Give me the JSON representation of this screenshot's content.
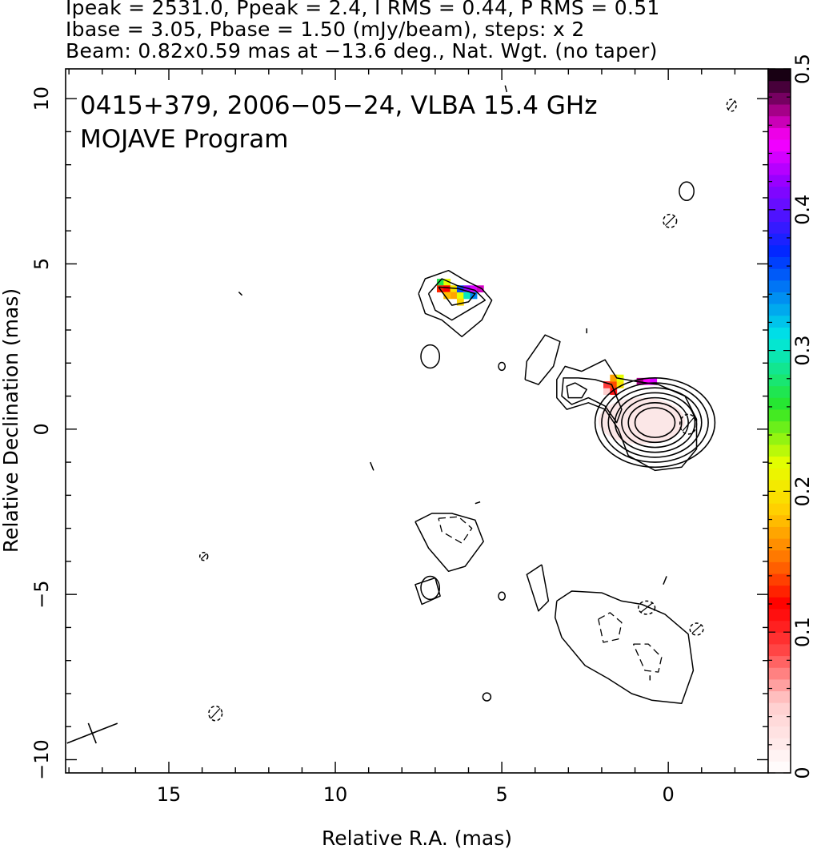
{
  "header": {
    "line1": "Ipeak = 2531.0, Ppeak = 2.4, I RMS = 0.44, P RMS = 0.51",
    "line2": "Ibase = 3.05, Pbase = 1.50 (mJy/beam), steps: x 2",
    "line3": "Beam: 0.82x0.59 mas at −13.6 deg., Nat. Wgt. (no taper)"
  },
  "plot_title": {
    "line1": "0415+379, 2006−05−24, VLBA 15.4 GHz",
    "line2": "MOJAVE Program"
  },
  "chart_data": {
    "type": "heatmap",
    "subtype": "radio contour map with fractional polarization color overlay",
    "xlabel": "Relative R.A. (mas)",
    "ylabel": "Relative Declination (mas)",
    "xlim": [
      18.1,
      -3.0
    ],
    "ylim": [
      -10.4,
      10.9
    ],
    "x_inverted": true,
    "x_ticks": [
      {
        "value": 15,
        "label": "15"
      },
      {
        "value": 10,
        "label": "10"
      },
      {
        "value": 5,
        "label": "5"
      },
      {
        "value": 0,
        "label": "0"
      }
    ],
    "y_ticks": [
      {
        "value": 10,
        "label": "10"
      },
      {
        "value": 5,
        "label": "5"
      },
      {
        "value": 0,
        "label": "0"
      },
      {
        "value": -5,
        "label": "−5"
      },
      {
        "value": -10,
        "label": "−10"
      }
    ],
    "colorbar": {
      "min": 0,
      "max": 0.5,
      "ticks": [
        {
          "value": 0,
          "label": "0"
        },
        {
          "value": 0.1,
          "label": "0.1"
        },
        {
          "value": 0.2,
          "label": "0.2"
        },
        {
          "value": 0.3,
          "label": "0.3"
        },
        {
          "value": 0.4,
          "label": "0.4"
        },
        {
          "value": 0.5,
          "label": "0.5"
        }
      ]
    },
    "beam": {
      "major_mas": 0.82,
      "minor_mas": 0.59,
      "pa_deg": -13.6,
      "x": 17.3,
      "y": -9.2
    },
    "core_center": {
      "x": 0.4,
      "y": 0.2
    },
    "core_contours": [
      {
        "rx": 1.8,
        "ry": 1.35
      },
      {
        "rx": 1.6,
        "ry": 1.2
      },
      {
        "rx": 1.4,
        "ry": 1.05
      },
      {
        "rx": 1.2,
        "ry": 0.9
      },
      {
        "rx": 1.0,
        "ry": 0.75
      },
      {
        "rx": 0.8,
        "ry": 0.6
      },
      {
        "rx": 0.6,
        "ry": 0.45
      }
    ],
    "contour_polylines": [
      {
        "name": "inner-jet-outer",
        "dashed": false,
        "points": [
          [
            2.6,
            1.75
          ],
          [
            3.1,
            1.9
          ],
          [
            3.35,
            1.5
          ],
          [
            3.35,
            0.95
          ],
          [
            3.05,
            0.6
          ],
          [
            2.4,
            0.8
          ],
          [
            1.9,
            0.6
          ],
          [
            1.5,
            0.0
          ],
          [
            1.2,
            -0.8
          ],
          [
            0.4,
            -1.25
          ],
          [
            -0.4,
            -1.15
          ],
          [
            -0.85,
            -0.6
          ],
          [
            -0.85,
            0.3
          ],
          [
            -0.5,
            1.0
          ],
          [
            0.3,
            1.35
          ],
          [
            1.0,
            1.45
          ],
          [
            1.55,
            1.55
          ],
          [
            1.9,
            2.1
          ],
          [
            2.6,
            1.75
          ]
        ]
      },
      {
        "name": "inner-jet-mid",
        "dashed": false,
        "points": [
          [
            2.7,
            1.55
          ],
          [
            3.15,
            1.55
          ],
          [
            3.2,
            1.0
          ],
          [
            2.9,
            0.75
          ],
          [
            2.4,
            0.95
          ],
          [
            1.9,
            0.7
          ],
          [
            1.55,
            0.2
          ],
          [
            1.4,
            0.6
          ],
          [
            1.7,
            1.35
          ],
          [
            2.2,
            1.5
          ],
          [
            2.7,
            1.55
          ]
        ]
      },
      {
        "name": "inner-jet-inner",
        "dashed": false,
        "points": [
          [
            2.8,
            1.4
          ],
          [
            3.05,
            1.3
          ],
          [
            3.0,
            0.95
          ],
          [
            2.6,
            0.95
          ],
          [
            2.45,
            1.2
          ],
          [
            2.8,
            1.4
          ]
        ]
      },
      {
        "name": "northeast-knot-outer",
        "dashed": false,
        "points": [
          [
            7.5,
            4.1
          ],
          [
            7.3,
            4.55
          ],
          [
            6.6,
            4.8
          ],
          [
            6.1,
            4.5
          ],
          [
            5.6,
            4.25
          ],
          [
            5.3,
            3.9
          ],
          [
            5.6,
            3.3
          ],
          [
            6.2,
            2.8
          ],
          [
            6.8,
            3.3
          ],
          [
            7.3,
            3.5
          ],
          [
            7.5,
            4.1
          ]
        ]
      },
      {
        "name": "northeast-knot-mid",
        "dashed": false,
        "points": [
          [
            7.2,
            4.1
          ],
          [
            6.8,
            4.55
          ],
          [
            6.35,
            4.35
          ],
          [
            5.8,
            4.2
          ],
          [
            5.5,
            3.9
          ],
          [
            6.0,
            3.6
          ],
          [
            6.5,
            3.3
          ],
          [
            7.0,
            3.6
          ],
          [
            7.2,
            4.1
          ]
        ]
      },
      {
        "name": "northeast-knot-inner",
        "dashed": false,
        "points": [
          [
            6.9,
            4.3
          ],
          [
            6.3,
            4.25
          ],
          [
            5.8,
            4.1
          ],
          [
            6.0,
            3.85
          ],
          [
            6.5,
            3.75
          ],
          [
            6.9,
            4.3
          ]
        ]
      },
      {
        "name": "middle-arc",
        "dashed": false,
        "points": [
          [
            4.3,
            1.5
          ],
          [
            4.25,
            2.05
          ],
          [
            3.7,
            2.85
          ],
          [
            3.25,
            2.65
          ],
          [
            3.45,
            1.9
          ],
          [
            3.9,
            1.35
          ],
          [
            4.3,
            1.5
          ]
        ]
      },
      {
        "name": "south-knot-outer",
        "dashed": false,
        "points": [
          [
            7.6,
            -2.8
          ],
          [
            7.1,
            -2.55
          ],
          [
            6.5,
            -2.55
          ],
          [
            5.8,
            -2.75
          ],
          [
            5.55,
            -3.4
          ],
          [
            6.1,
            -4.15
          ],
          [
            6.6,
            -4.3
          ],
          [
            7.2,
            -3.6
          ],
          [
            7.6,
            -2.8
          ]
        ]
      },
      {
        "name": "south-knot-neg",
        "dashed": true,
        "points": [
          [
            6.9,
            -2.7
          ],
          [
            6.3,
            -2.65
          ],
          [
            5.9,
            -3.0
          ],
          [
            6.2,
            -3.45
          ],
          [
            6.8,
            -3.1
          ],
          [
            6.9,
            -2.7
          ]
        ]
      },
      {
        "name": "southwest-blob-outer",
        "dashed": false,
        "points": [
          [
            3.35,
            -5.2
          ],
          [
            2.9,
            -4.9
          ],
          [
            2.0,
            -4.95
          ],
          [
            1.4,
            -5.2
          ],
          [
            0.8,
            -5.3
          ],
          [
            0.1,
            -5.6
          ],
          [
            -0.6,
            -6.2
          ],
          [
            -0.75,
            -7.3
          ],
          [
            -0.4,
            -8.3
          ],
          [
            0.5,
            -8.2
          ],
          [
            1.1,
            -8.0
          ],
          [
            1.8,
            -7.55
          ],
          [
            2.5,
            -7.15
          ],
          [
            3.2,
            -6.3
          ],
          [
            3.4,
            -5.7
          ],
          [
            3.35,
            -5.2
          ]
        ]
      },
      {
        "name": "southwest-neg-1",
        "dashed": true,
        "points": [
          [
            2.1,
            -5.75
          ],
          [
            1.75,
            -5.55
          ],
          [
            1.4,
            -5.85
          ],
          [
            1.5,
            -6.35
          ],
          [
            1.95,
            -6.45
          ],
          [
            2.1,
            -5.75
          ]
        ]
      },
      {
        "name": "southwest-neg-2",
        "dashed": true,
        "points": [
          [
            1.05,
            -6.5
          ],
          [
            0.6,
            -6.5
          ],
          [
            0.2,
            -6.9
          ],
          [
            0.3,
            -7.35
          ],
          [
            0.7,
            -7.3
          ],
          [
            1.05,
            -6.5
          ]
        ]
      },
      {
        "name": "ray-southeast",
        "dashed": false,
        "points": [
          [
            3.8,
            -4.1
          ],
          [
            3.6,
            -5.2
          ],
          [
            3.9,
            -5.5
          ],
          [
            4.25,
            -4.4
          ],
          [
            3.8,
            -4.1
          ]
        ]
      },
      {
        "name": "ray-far",
        "dashed": false,
        "points": [
          [
            7.0,
            -4.5
          ],
          [
            6.85,
            -5.05
          ],
          [
            7.4,
            -5.3
          ],
          [
            7.6,
            -4.7
          ],
          [
            7.0,
            -4.5
          ]
        ]
      }
    ],
    "contour_ellipses": [
      {
        "x": 7.15,
        "y": 2.2,
        "rx": 0.28,
        "ry": 0.35,
        "dashed": false
      },
      {
        "x": 5.0,
        "y": 1.9,
        "rx": 0.1,
        "ry": 0.12,
        "dashed": false
      },
      {
        "x": 7.15,
        "y": -4.8,
        "rx": 0.28,
        "ry": 0.35,
        "dashed": false
      },
      {
        "x": 5.0,
        "y": -5.05,
        "rx": 0.1,
        "ry": 0.12,
        "dashed": false
      },
      {
        "x": 5.45,
        "y": -8.1,
        "rx": 0.12,
        "ry": 0.12,
        "dashed": false
      },
      {
        "x": 13.6,
        "y": -8.6,
        "rx": 0.2,
        "ry": 0.22,
        "dashed": true
      },
      {
        "x": 13.95,
        "y": -3.85,
        "rx": 0.12,
        "ry": 0.12,
        "dashed": true
      },
      {
        "x": -0.55,
        "y": 7.2,
        "rx": 0.22,
        "ry": 0.28,
        "dashed": false
      },
      {
        "x": -0.05,
        "y": 6.3,
        "rx": 0.2,
        "ry": 0.2,
        "dashed": true
      },
      {
        "x": -1.9,
        "y": 9.8,
        "rx": 0.14,
        "ry": 0.18,
        "dashed": true
      },
      {
        "x": -0.6,
        "y": 0.15,
        "rx": 0.25,
        "ry": 0.3,
        "dashed": true
      },
      {
        "x": 0.65,
        "y": -5.4,
        "rx": 0.25,
        "ry": 0.2,
        "dashed": true
      },
      {
        "x": -0.85,
        "y": -6.05,
        "rx": 0.2,
        "ry": 0.18,
        "dashed": true
      }
    ],
    "contour_ticks": [
      {
        "x1": 12.9,
        "y1": 4.15,
        "x2": 12.8,
        "y2": 4.05
      },
      {
        "x1": 8.95,
        "y1": -1.0,
        "x2": 8.85,
        "y2": -1.25
      },
      {
        "x1": 2.45,
        "y1": 3.05,
        "x2": 2.45,
        "y2": 2.9
      },
      {
        "x1": 0.05,
        "y1": -4.45,
        "x2": 0.15,
        "y2": -4.7
      },
      {
        "x1": 0.55,
        "y1": -7.45,
        "x2": 0.55,
        "y2": -7.6
      },
      {
        "x1": 4.9,
        "y1": 10.4,
        "x2": 4.85,
        "y2": 10.2
      },
      {
        "x1": 2.45,
        "y1": 10.0,
        "x2": 2.4,
        "y2": 9.85
      },
      {
        "x1": 5.8,
        "y1": -2.25,
        "x2": 5.65,
        "y2": -2.2
      }
    ],
    "polarization_pixels": [
      {
        "x": 6.85,
        "y": 4.45,
        "p": 0.27
      },
      {
        "x": 6.65,
        "y": 4.45,
        "p": 0.22
      },
      {
        "x": 6.85,
        "y": 4.25,
        "p": 0.13
      },
      {
        "x": 6.65,
        "y": 4.25,
        "p": 0.12
      },
      {
        "x": 6.45,
        "y": 4.25,
        "p": 0.2
      },
      {
        "x": 6.45,
        "y": 4.05,
        "p": 0.17
      },
      {
        "x": 6.25,
        "y": 4.05,
        "p": 0.22
      },
      {
        "x": 6.25,
        "y": 4.25,
        "p": 0.36
      },
      {
        "x": 6.05,
        "y": 4.25,
        "p": 0.42
      },
      {
        "x": 5.85,
        "y": 4.25,
        "p": 0.44
      },
      {
        "x": 6.05,
        "y": 4.05,
        "p": 0.3
      },
      {
        "x": 5.85,
        "y": 4.05,
        "p": 0.34
      },
      {
        "x": 5.65,
        "y": 4.25,
        "p": 0.46
      },
      {
        "x": 6.25,
        "y": 3.85,
        "p": 0.19
      },
      {
        "x": 6.65,
        "y": 4.05,
        "p": 0.18
      },
      {
        "x": 1.85,
        "y": 1.15,
        "p": 0.05
      },
      {
        "x": 1.85,
        "y": 1.35,
        "p": 0.09
      },
      {
        "x": 1.65,
        "y": 1.15,
        "p": 0.11
      },
      {
        "x": 1.65,
        "y": 1.35,
        "p": 0.14
      },
      {
        "x": 1.65,
        "y": 1.55,
        "p": 0.17
      },
      {
        "x": 1.45,
        "y": 1.35,
        "p": 0.2
      },
      {
        "x": 1.45,
        "y": 1.55,
        "p": 0.22
      },
      {
        "x": 0.85,
        "y": 1.45,
        "p": 0.47
      },
      {
        "x": 0.65,
        "y": 1.45,
        "p": 0.45
      },
      {
        "x": 0.45,
        "y": 1.45,
        "p": 0.44
      }
    ],
    "faint_core_tint": {
      "x": 0.8,
      "y": 0.25,
      "rx": 1.3,
      "ry": 0.7,
      "color": "#fbe7e7"
    }
  }
}
